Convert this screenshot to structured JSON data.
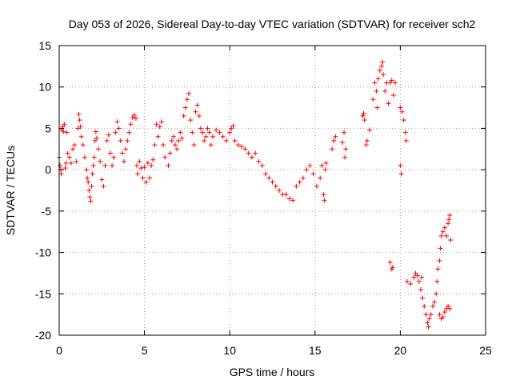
{
  "chart_data": {
    "type": "scatter",
    "title": "Day 053 of 2026, Sidereal Day-to-day VTEC variation (SDTVAR) for receiver sch2",
    "xlabel": "GPS time / hours",
    "ylabel": "SDTVAR / TECUs",
    "xlim": [
      0,
      25
    ],
    "ylim": [
      -20,
      15
    ],
    "xticks": [
      0,
      5,
      10,
      15,
      20,
      25
    ],
    "yticks": [
      -20,
      -15,
      -10,
      -5,
      0,
      5,
      10,
      15
    ],
    "xtick_labels": [
      "0",
      "5",
      "10",
      "15",
      "20",
      "25"
    ],
    "ytick_labels": [
      "-20",
      "-15",
      "-10",
      "-5",
      "0",
      "5",
      "10",
      "15"
    ],
    "grid": true,
    "marker": "+",
    "color": "#ff0000",
    "series": [
      {
        "name": "SDTVAR",
        "points": [
          [
            0.0,
            1.5
          ],
          [
            0.05,
            0.5
          ],
          [
            0.1,
            0.0
          ],
          [
            0.12,
            -0.5
          ],
          [
            0.15,
            4.8
          ],
          [
            0.2,
            5.2
          ],
          [
            0.25,
            4.6
          ],
          [
            0.3,
            5.5
          ],
          [
            0.35,
            0.2
          ],
          [
            0.4,
            0.8
          ],
          [
            0.45,
            4.5
          ],
          [
            0.5,
            2.0
          ],
          [
            0.6,
            1.5
          ],
          [
            0.7,
            0.8
          ],
          [
            0.8,
            2.5
          ],
          [
            0.9,
            3.0
          ],
          [
            1.0,
            1.0
          ],
          [
            1.1,
            5.0
          ],
          [
            1.15,
            6.7
          ],
          [
            1.2,
            6.0
          ],
          [
            1.25,
            5.2
          ],
          [
            1.3,
            4.0
          ],
          [
            1.4,
            3.0
          ],
          [
            1.5,
            1.5
          ],
          [
            1.6,
            0.0
          ],
          [
            1.65,
            -1.0
          ],
          [
            1.7,
            -1.5
          ],
          [
            1.75,
            -2.5
          ],
          [
            1.8,
            -3.3
          ],
          [
            1.85,
            -3.8
          ],
          [
            1.9,
            -2.0
          ],
          [
            1.95,
            -0.5
          ],
          [
            2.0,
            0.5
          ],
          [
            2.05,
            1.5
          ],
          [
            2.1,
            3.5
          ],
          [
            2.15,
            4.6
          ],
          [
            2.2,
            3.8
          ],
          [
            2.3,
            2.5
          ],
          [
            2.4,
            1.0
          ],
          [
            2.5,
            -1.2
          ],
          [
            2.6,
            -2.0
          ],
          [
            2.7,
            0.5
          ],
          [
            2.8,
            3.5
          ],
          [
            2.9,
            4.2
          ],
          [
            3.0,
            2.0
          ],
          [
            3.1,
            0.5
          ],
          [
            3.2,
            1.5
          ],
          [
            3.3,
            4.5
          ],
          [
            3.4,
            5.8
          ],
          [
            3.5,
            5.0
          ],
          [
            3.6,
            3.5
          ],
          [
            3.7,
            2.0
          ],
          [
            3.8,
            1.0
          ],
          [
            3.9,
            2.5
          ],
          [
            4.0,
            3.5
          ],
          [
            4.1,
            4.5
          ],
          [
            4.2,
            5.5
          ],
          [
            4.3,
            6.3
          ],
          [
            4.4,
            6.6
          ],
          [
            4.5,
            6.2
          ],
          [
            4.55,
            0.5
          ],
          [
            4.6,
            -0.5
          ],
          [
            4.7,
            1.0
          ],
          [
            4.8,
            0.2
          ],
          [
            4.9,
            -1.0
          ],
          [
            5.0,
            0.3
          ],
          [
            5.1,
            -1.5
          ],
          [
            5.2,
            0.8
          ],
          [
            5.3,
            -1.0
          ],
          [
            5.4,
            0.5
          ],
          [
            5.5,
            1.2
          ],
          [
            5.6,
            3.0
          ],
          [
            5.7,
            5.5
          ],
          [
            5.8,
            4.0
          ],
          [
            5.9,
            5.2
          ],
          [
            6.0,
            5.8
          ],
          [
            6.1,
            3.0
          ],
          [
            6.2,
            1.5
          ],
          [
            6.4,
            0.5
          ],
          [
            6.5,
            2.0
          ],
          [
            6.6,
            3.5
          ],
          [
            6.7,
            4.0
          ],
          [
            6.8,
            3.0
          ],
          [
            6.9,
            2.5
          ],
          [
            7.0,
            3.5
          ],
          [
            7.1,
            4.5
          ],
          [
            7.2,
            3.8
          ],
          [
            7.3,
            6.5
          ],
          [
            7.4,
            7.5
          ],
          [
            7.5,
            8.5
          ],
          [
            7.6,
            9.2
          ],
          [
            7.7,
            6.0
          ],
          [
            7.8,
            4.5
          ],
          [
            7.9,
            3.0
          ],
          [
            8.0,
            7.0
          ],
          [
            8.1,
            7.8
          ],
          [
            8.2,
            6.5
          ],
          [
            8.3,
            5.0
          ],
          [
            8.4,
            4.5
          ],
          [
            8.5,
            3.5
          ],
          [
            8.6,
            4.0
          ],
          [
            8.7,
            5.0
          ],
          [
            8.8,
            4.5
          ],
          [
            8.9,
            3.0
          ],
          [
            9.0,
            4.0
          ],
          [
            9.2,
            4.8
          ],
          [
            9.4,
            4.5
          ],
          [
            9.6,
            4.0
          ],
          [
            9.8,
            3.5
          ],
          [
            10.0,
            4.5
          ],
          [
            10.1,
            5.0
          ],
          [
            10.2,
            5.3
          ],
          [
            10.3,
            3.5
          ],
          [
            10.5,
            3.0
          ],
          [
            10.7,
            2.8
          ],
          [
            10.9,
            2.5
          ],
          [
            11.1,
            2.0
          ],
          [
            11.3,
            1.5
          ],
          [
            11.5,
            2.0
          ],
          [
            11.7,
            1.0
          ],
          [
            11.9,
            0.5
          ],
          [
            12.1,
            -0.5
          ],
          [
            12.3,
            -1.0
          ],
          [
            12.5,
            -1.5
          ],
          [
            12.7,
            -2.0
          ],
          [
            12.9,
            -2.5
          ],
          [
            13.1,
            -3.0
          ],
          [
            13.3,
            -3.0
          ],
          [
            13.5,
            -3.5
          ],
          [
            13.7,
            -3.7
          ],
          [
            13.9,
            -2.0
          ],
          [
            14.1,
            -1.5
          ],
          [
            14.3,
            -1.0
          ],
          [
            14.5,
            0.0
          ],
          [
            14.7,
            0.5
          ],
          [
            14.9,
            -0.5
          ],
          [
            15.1,
            -2.0
          ],
          [
            15.3,
            -1.0
          ],
          [
            15.4,
            0.5
          ],
          [
            15.5,
            -3.0
          ],
          [
            15.55,
            -3.7
          ],
          [
            15.6,
            0.0
          ],
          [
            15.65,
            0.8
          ],
          [
            16.0,
            2.5
          ],
          [
            16.1,
            3.5
          ],
          [
            16.2,
            4.0
          ],
          [
            16.6,
            3.3
          ],
          [
            16.7,
            4.5
          ],
          [
            16.75,
            1.5
          ],
          [
            16.8,
            2.5
          ],
          [
            17.8,
            6.5
          ],
          [
            17.85,
            6.8
          ],
          [
            17.9,
            6.0
          ],
          [
            18.0,
            3.0
          ],
          [
            18.05,
            3.5
          ],
          [
            18.2,
            4.8
          ],
          [
            18.4,
            8.5
          ],
          [
            18.5,
            10.5
          ],
          [
            18.6,
            9.5
          ],
          [
            18.65,
            7.5
          ],
          [
            18.7,
            11.0
          ],
          [
            18.8,
            12.0
          ],
          [
            18.9,
            12.5
          ],
          [
            18.95,
            13.0
          ],
          [
            19.0,
            11.5
          ],
          [
            19.1,
            9.5
          ],
          [
            19.2,
            10.5
          ],
          [
            19.3,
            8.0
          ],
          [
            19.4,
            10.5
          ],
          [
            19.5,
            10.8
          ],
          [
            19.6,
            9.0
          ],
          [
            19.7,
            10.5
          ],
          [
            19.4,
            -11.2
          ],
          [
            19.5,
            -12.0
          ],
          [
            19.55,
            -11.8
          ],
          [
            20.0,
            7.5
          ],
          [
            20.1,
            7.0
          ],
          [
            20.2,
            6.0
          ],
          [
            20.3,
            4.5
          ],
          [
            20.35,
            3.5
          ],
          [
            20.0,
            0.5
          ],
          [
            20.05,
            -0.5
          ],
          [
            20.4,
            -13.5
          ],
          [
            20.6,
            -13.8
          ],
          [
            20.8,
            -13.0
          ],
          [
            20.9,
            -12.5
          ],
          [
            21.0,
            -12.8
          ],
          [
            21.1,
            -13.5
          ],
          [
            21.2,
            -14.5
          ],
          [
            21.25,
            -13.0
          ],
          [
            21.3,
            -15.5
          ],
          [
            21.4,
            -16.5
          ],
          [
            21.5,
            -17.5
          ],
          [
            21.6,
            -18.5
          ],
          [
            21.65,
            -19.0
          ],
          [
            21.7,
            -18.0
          ],
          [
            21.8,
            -17.5
          ],
          [
            21.9,
            -16.5
          ],
          [
            22.0,
            -16.0
          ],
          [
            22.1,
            -15.0
          ],
          [
            22.15,
            -13.5
          ],
          [
            22.2,
            -12.0
          ],
          [
            22.3,
            -11.0
          ],
          [
            22.35,
            -9.5
          ],
          [
            22.4,
            -8.0
          ],
          [
            22.5,
            -7.5
          ],
          [
            22.6,
            -7.0
          ],
          [
            22.7,
            -8.0
          ],
          [
            22.8,
            -6.5
          ],
          [
            22.85,
            -6.0
          ],
          [
            22.9,
            -5.5
          ],
          [
            22.95,
            -8.5
          ],
          [
            22.3,
            -17.5
          ],
          [
            22.4,
            -18.0
          ],
          [
            22.5,
            -17.8
          ],
          [
            22.6,
            -17.2
          ],
          [
            22.7,
            -16.8
          ],
          [
            22.8,
            -16.5
          ],
          [
            22.9,
            -16.8
          ]
        ]
      }
    ]
  }
}
